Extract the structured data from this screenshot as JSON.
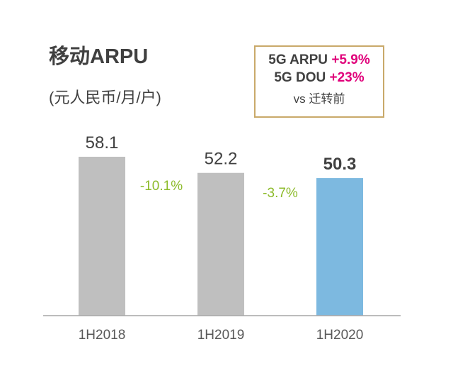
{
  "title": "移动ARPU",
  "unit": "(元人民币/月/户)",
  "callout": {
    "arpu_label": "5G ARPU",
    "arpu_value": "+5.9%",
    "dou_label": "5G DOU",
    "dou_value": "+23%",
    "note": "vs 迁转前"
  },
  "colors": {
    "bar_gray": "#bfbfbf",
    "bar_highlight": "#7db9e0",
    "change_green": "#8dbb2b",
    "accent": "#e0007a",
    "text": "#404040",
    "axis": "#a6a6a6"
  },
  "chart_data": {
    "type": "bar",
    "title": "移动ARPU",
    "ylabel": "(元人民币/月/户)",
    "xlabel": "",
    "categories": [
      "1H2018",
      "1H2019",
      "1H2020"
    ],
    "values": [
      58.1,
      52.2,
      50.3
    ],
    "value_labels": [
      "58.1",
      "52.2",
      "50.3"
    ],
    "highlight_index": 2,
    "changes": [
      "-10.1%",
      "-3.7%"
    ],
    "ylim": [
      0,
      65
    ],
    "grid": false,
    "legend": "none"
  }
}
